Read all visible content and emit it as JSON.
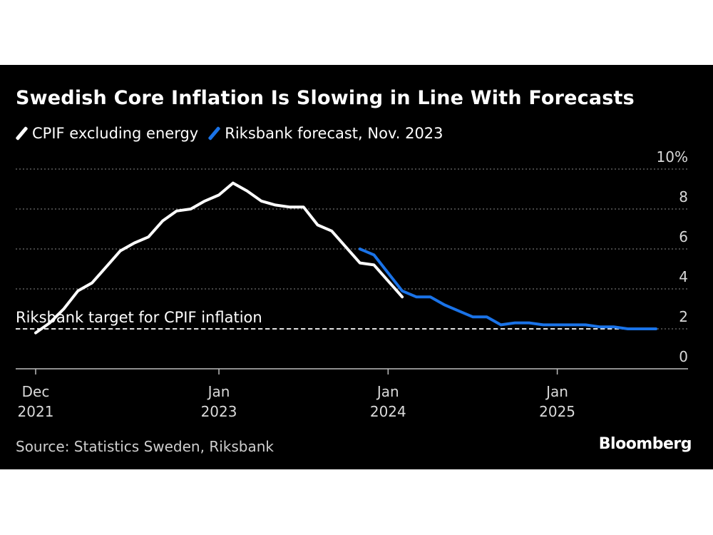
{
  "title": "Swedish Core Inflation Is Slowing in Line With Forecasts",
  "source": "Source: Statistics Sweden, Riksbank",
  "brand": "Bloomberg",
  "colors": {
    "background": "#000000",
    "series_actual": "#ffffff",
    "series_forecast": "#1a73e8",
    "grid": "#8a8a8a"
  },
  "chart_data": {
    "type": "line",
    "title": "Swedish Core Inflation Is Slowing in Line With Forecasts",
    "xlabel": "",
    "ylabel": "",
    "ylim": [
      0,
      10
    ],
    "y_unit": "%",
    "grid": true,
    "legend_placement": "top-left",
    "y_ticks": [
      "0",
      "2",
      "4",
      "6",
      "8",
      "10%"
    ],
    "x_ticks": [
      {
        "date": "2021-12",
        "line1": "Dec",
        "line2": "2021"
      },
      {
        "date": "2023-01",
        "line1": "Jan",
        "line2": "2023"
      },
      {
        "date": "2024-01",
        "line1": "Jan",
        "line2": "2024"
      },
      {
        "date": "2025-01",
        "line1": "Jan",
        "line2": "2025"
      }
    ],
    "reference_line": {
      "y": 2.0,
      "label": "Riksbank target for CPIF inflation"
    },
    "series": [
      {
        "name": "CPIF excluding energy",
        "color": "#ffffff",
        "points": [
          [
            "2021-12",
            1.8
          ],
          [
            "2022-01",
            2.3
          ],
          [
            "2022-02",
            3.0
          ],
          [
            "2022-03",
            3.9
          ],
          [
            "2022-04",
            4.3
          ],
          [
            "2022-05",
            5.1
          ],
          [
            "2022-06",
            5.9
          ],
          [
            "2022-07",
            6.3
          ],
          [
            "2022-08",
            6.6
          ],
          [
            "2022-09",
            7.4
          ],
          [
            "2022-10",
            7.9
          ],
          [
            "2022-11",
            8.0
          ],
          [
            "2022-12",
            8.4
          ],
          [
            "2023-01",
            8.7
          ],
          [
            "2023-02",
            9.3
          ],
          [
            "2023-03",
            8.9
          ],
          [
            "2023-04",
            8.4
          ],
          [
            "2023-05",
            8.2
          ],
          [
            "2023-06",
            8.1
          ],
          [
            "2023-07",
            8.1
          ],
          [
            "2023-08",
            7.2
          ],
          [
            "2023-09",
            6.9
          ],
          [
            "2023-10",
            6.1
          ],
          [
            "2023-11",
            5.3
          ],
          [
            "2023-12",
            5.2
          ],
          [
            "2024-01",
            4.4
          ],
          [
            "2024-02",
            3.6
          ]
        ]
      },
      {
        "name": "Riksbank forecast, Nov. 2023",
        "color": "#1a73e8",
        "points": [
          [
            "2023-11",
            6.0
          ],
          [
            "2023-12",
            5.7
          ],
          [
            "2024-01",
            4.8
          ],
          [
            "2024-02",
            3.9
          ],
          [
            "2024-03",
            3.6
          ],
          [
            "2024-04",
            3.6
          ],
          [
            "2024-05",
            3.2
          ],
          [
            "2024-06",
            2.9
          ],
          [
            "2024-07",
            2.6
          ],
          [
            "2024-08",
            2.6
          ],
          [
            "2024-09",
            2.2
          ],
          [
            "2024-10",
            2.3
          ],
          [
            "2024-11",
            2.3
          ],
          [
            "2024-12",
            2.2
          ],
          [
            "2025-01",
            2.2
          ],
          [
            "2025-02",
            2.2
          ],
          [
            "2025-03",
            2.2
          ],
          [
            "2025-04",
            2.1
          ],
          [
            "2025-05",
            2.1
          ],
          [
            "2025-06",
            2.0
          ],
          [
            "2025-07",
            2.0
          ],
          [
            "2025-08",
            2.0
          ]
        ]
      }
    ]
  }
}
